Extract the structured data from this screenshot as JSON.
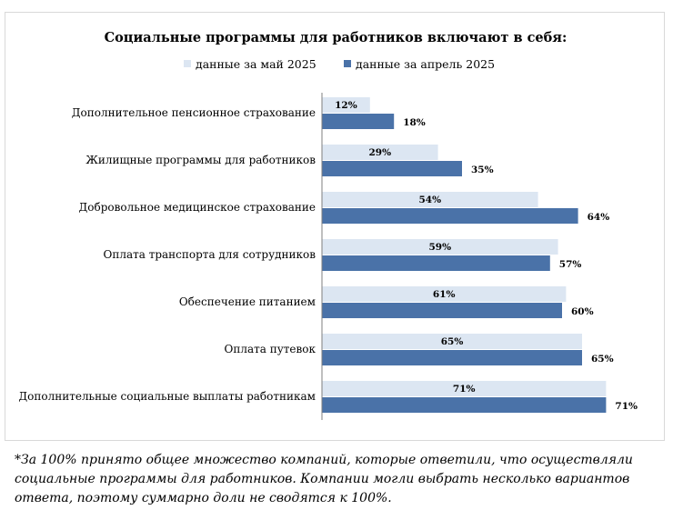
{
  "chart_data": {
    "type": "bar",
    "orientation": "horizontal",
    "title": "Социальные программы для работников включают в себя:",
    "categories": [
      "Дополнительное пенсионное страхование",
      "Жилищные программы для работников",
      "Добровольное медицинское страхование",
      "Оплата транспорта для сотрудников",
      "Обеспечение питанием",
      "Оплата путевок",
      "Дополнительные социальные выплаты работникам"
    ],
    "series": [
      {
        "name": "данные за май 2025",
        "color": "#dce6f2",
        "values": [
          12,
          29,
          54,
          59,
          61,
          65,
          71
        ]
      },
      {
        "name": "данные за апрель 2025",
        "color": "#4a72a8",
        "values": [
          18,
          35,
          64,
          57,
          60,
          65,
          71
        ]
      }
    ],
    "value_suffix": "%",
    "xlim": [
      0,
      100
    ],
    "legend_position": "top",
    "grid": false
  },
  "footnote": "*За 100% принято общее множество компаний, которые ответили, что осуществляли социальные программы для работников. Компании могли выбрать несколько вариантов ответа, поэтому суммарно доли не сводятся к 100%."
}
